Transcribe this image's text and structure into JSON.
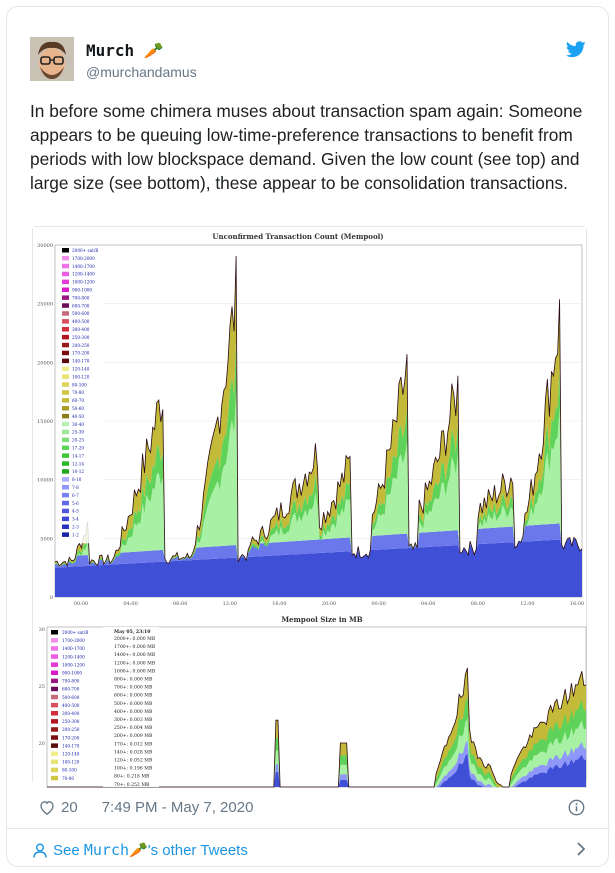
{
  "tweet": {
    "author_name": "Murch",
    "author_emoji": "🥕",
    "handle": "@murchandamus",
    "text": "In before some chimera muses about transaction spam again: Someone appears to be queuing low-time-preference transactions to benefit from periods with low blockspace demand. Given the low count (see top) and large size (see bottom), these appear to be consolidation transactions.",
    "likes": "20",
    "timestamp": "7:49 PM - May 7, 2020",
    "footer_prefix": "See ",
    "footer_name": "Murch",
    "footer_suffix": "'s other Tweets"
  },
  "icons": {
    "bird": "twitter-bird-icon",
    "heart": "heart-icon",
    "info": "info-icon",
    "person": "person-icon",
    "chevron": "chevron-right-icon"
  },
  "colors": {
    "brand_blue": "#1da1f2",
    "link_blue": "#1b95e0",
    "muted": "#657786",
    "chart_olive": "#c3ba3a",
    "chart_green": "#6fd06f",
    "chart_blue": "#3f4fd6"
  },
  "chart1": {
    "title": "Unconfirmed Transaction Count (Mempool)",
    "y_ticks": [
      "30000",
      "25000",
      "20000",
      "15000",
      "10000",
      "5000",
      "0"
    ],
    "x_ticks": [
      "00:00",
      "04:00",
      "08:00",
      "12:00",
      "16:00",
      "20:00",
      "00:00",
      "04:00",
      "08:00",
      "12:00",
      "16:00"
    ],
    "legend": [
      "2000+ sat/B",
      "1700-2000",
      "1400-1700",
      "1200-1400",
      "1000-1200",
      "900-1000",
      "700-800",
      "600-700",
      "500-600",
      "400-500",
      "300-400",
      "250-300",
      "200-250",
      "170-200",
      "140-170",
      "120-140",
      "100-120",
      "80-100",
      "70-80",
      "60-70",
      "50-60",
      "40-50",
      "30-40",
      "25-30",
      "20-25",
      "17-20",
      "14-17",
      "12-14",
      "10-12",
      "8-10",
      "7-8",
      "6-7",
      "5-6",
      "4-5",
      "3-4",
      "2-3",
      "1-2"
    ]
  },
  "chart2": {
    "title": "Mempool Size in MB",
    "y_ticks": [
      "30",
      "25",
      "20"
    ],
    "legend": [
      "2000+ sat/B",
      "1700-2000",
      "1400-1700",
      "1200-1400",
      "1000-1200",
      "900-1000",
      "700-800",
      "600-700",
      "500-600",
      "400-500",
      "300-400",
      "250-300",
      "200-250",
      "170-200",
      "140-170",
      "120-140",
      "100-120",
      "80-100",
      "70-80"
    ],
    "tooltip_title": "May 05, 23:10",
    "tooltip_rows": [
      "2000+: 0.000 MB",
      "1700+: 0.000 MB",
      "1400+: 0.000 MB",
      "1200+: 0.000 MB",
      "1000+: 0.000 MB",
      "800+: 0.000 MB",
      "700+: 0.000 MB",
      "600+: 0.000 MB",
      "500+: 0.000 MB",
      "400+: 0.000 MB",
      "300+: 0.003 MB",
      "250+: 0.004 MB",
      "200+: 0.009 MB",
      "170+: 0.012 MB",
      "140+: 0.028 MB",
      "120+: 0.052 MB",
      "100+: 0.196 MB",
      "80+: 0.218 MB",
      "70+: 0.252 MB"
    ]
  }
}
